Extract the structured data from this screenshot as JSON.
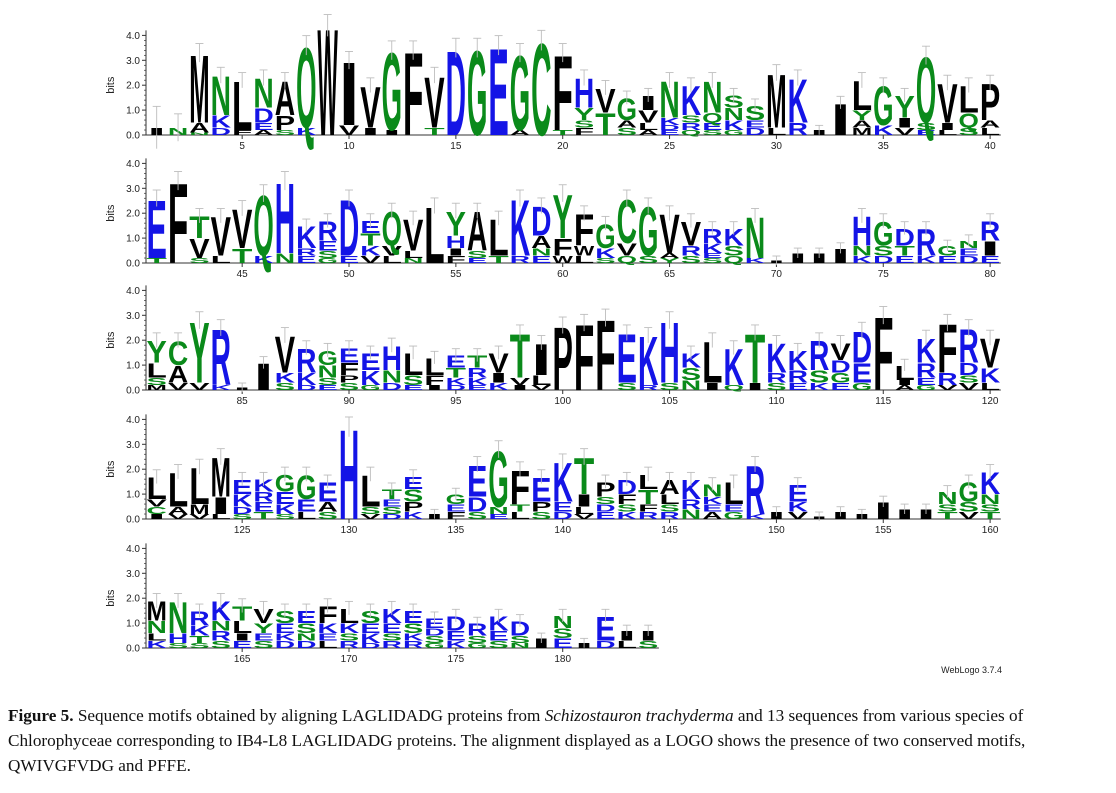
{
  "chart_data": {
    "type": "sequence-logo",
    "ylabel": "bits",
    "yticks": [
      "0.0",
      "1.0",
      "2.0",
      "3.0",
      "4.0"
    ],
    "ylim": [
      0,
      4.2
    ],
    "colors": {
      "polar": "#0a8a1a",
      "basic": "#1414e6",
      "acidic": "#1414e6",
      "hydrophobic": "#000000"
    },
    "credit": "WebLogo 3.7.4",
    "rows": [
      {
        "start": 1,
        "end": 40,
        "xticks": [
          "5",
          "10",
          "15",
          "20",
          "25",
          "30",
          "35",
          "40"
        ],
        "columns": [
          [
            "I:0.3:1.7"
          ],
          [
            "N:0.3:1.1"
          ],
          [
            "M:2.8",
            "A:0.4",
            "N:0.1"
          ],
          [
            "N:1.6",
            "K:0.5",
            "D:0.3"
          ],
          [
            "L:2.0",
            "F:0.2"
          ],
          [
            "N:1.2",
            "D:0.6",
            "E:0.3",
            "A:0.2"
          ],
          [
            "A:1.4",
            "P:0.6",
            "S:0.2"
          ],
          [
            "Q:3.3",
            "K:0.3"
          ],
          [
            "W:4.4"
          ],
          [
            "I:2.6",
            "V:0.4"
          ],
          [
            "V:1.7",
            "I:0.3"
          ],
          [
            "G:3.2",
            "I:0.2"
          ],
          [
            "F:3.4"
          ],
          [
            "V:2.1",
            "T:0.3"
          ],
          [
            "D:3.5"
          ],
          [
            "G:3.5"
          ],
          [
            "E:3.6"
          ],
          [
            "G:3.1",
            "A:0.2"
          ],
          [
            "C:3.8"
          ],
          [
            "F:3.1",
            "T:0.2"
          ],
          [
            "H:1.2",
            "Y:0.5",
            "F:0.3",
            "S:0.3"
          ],
          [
            "T:0.9",
            "V:1.0"
          ],
          [
            "G:0.9",
            "S:0.3",
            "A:0.3"
          ],
          [
            "I:0.6",
            "V:0.5",
            "L:0.3",
            "A:0.2"
          ],
          [
            "N:1.5",
            "K:0.3",
            "E:0.2",
            "D:0.2"
          ],
          [
            "K:1.2",
            "R:0.3",
            "Q:0.2",
            "S:0.3"
          ],
          [
            "N:1.3",
            "Q:0.4",
            "S:0.2",
            "E:0.3"
          ],
          [
            "N:0.5",
            "K:0.4",
            "S:0.5",
            "G:0.2"
          ],
          [
            "S:0.6",
            "D:0.3",
            "E:0.3"
          ],
          [
            "M:2.2",
            "L:0.3"
          ],
          [
            "K:1.8",
            "R:0.5"
          ],
          [
            "I:0.2"
          ],
          [
            "I:1.3"
          ],
          [
            "L:1.2",
            "Y:0.4",
            "M:0.3",
            "A:0.3"
          ],
          [
            "G:1.6",
            "K:0.4"
          ],
          [
            "Y:0.9",
            "V:0.3",
            "I:0.4"
          ],
          [
            "Q:2.7",
            "S:0.3",
            "E:0.2"
          ],
          [
            "V:1.6",
            "I:0.3",
            "L:0.2"
          ],
          [
            "L:1.1",
            "Q:0.6",
            "S:0.3"
          ],
          [
            "P:1.5",
            "L:0.3",
            "A:0.3"
          ]
        ]
      },
      {
        "start": 41,
        "end": 80,
        "xticks": [
          "45",
          "50",
          "55",
          "60",
          "65",
          "70",
          "75",
          "80"
        ],
        "columns": [
          [
            "E:2.4",
            "T:0.2"
          ],
          [
            "F:3.3"
          ],
          [
            "T:0.9",
            "V:0.8",
            "S:0.2"
          ],
          [
            "V:1.6",
            "L:0.3"
          ],
          [
            "V:1.6",
            "T:0.6"
          ],
          [
            "Q:2.5",
            "K:0.3"
          ],
          [
            "H:2.9",
            "N:0.4"
          ],
          [
            "K:0.9",
            "E:0.3",
            "R:0.3"
          ],
          [
            "R:0.8",
            "E:0.4",
            "S:0.3",
            "G:0.2"
          ],
          [
            "D:2.3",
            "E:0.3"
          ],
          [
            "T:0.5",
            "E:0.5",
            "K:0.4",
            "V:0.3"
          ],
          [
            "Q:1.4",
            "V:0.4",
            "L:0.3"
          ],
          [
            "V:1.3",
            "L:0.3",
            "N:0.2"
          ],
          [
            "L:2.3"
          ],
          [
            "Y:1.0",
            "H:0.5",
            "F:0.3",
            "I:0.3"
          ],
          [
            "A:1.6",
            "S:0.3",
            "E:0.2"
          ],
          [
            "L:1.5",
            "T:0.3"
          ],
          [
            "K:2.3",
            "R:0.3"
          ],
          [
            "D:1.2",
            "A:0.5",
            "E:0.3",
            "N:0.3"
          ],
          [
            "Y:1.8",
            "F:0.7",
            "W:0.3"
          ],
          [
            "F:1.3",
            "W:0.4",
            "L:0.3"
          ],
          [
            "G:1.0",
            "K:0.4",
            "S:0.2"
          ],
          [
            "C:1.8",
            "V:0.5",
            "Q:0.3"
          ],
          [
            "G:2.0",
            "S:0.3"
          ],
          [
            "V:1.6",
            "Y:0.2",
            "A:0.2"
          ],
          [
            "V:1.0",
            "R:0.4",
            "S:0.3"
          ],
          [
            "R:0.6",
            "K:0.4",
            "S:0.2",
            "E:0.2"
          ],
          [
            "K:0.7",
            "S:0.4",
            "Q:0.3"
          ],
          [
            "N:1.7",
            "K:0.2"
          ],
          [
            "I:0.1"
          ],
          [
            "I:0.4"
          ],
          [
            "I:0.4"
          ],
          [
            "I:0.6"
          ],
          [
            "H:1.2",
            "N:0.4",
            "K:0.3"
          ],
          [
            "G:1.0",
            "S:0.4",
            "D:0.3"
          ],
          [
            "D:0.7",
            "T:0.4",
            "E:0.3"
          ],
          [
            "R:1.1",
            "K:0.3"
          ],
          [
            "G:0.4",
            "E:0.3"
          ],
          [
            "D:0.3",
            "E:0.3",
            "N:0.3"
          ],
          [
            "R:0.8",
            "I:0.6",
            "E:0.3"
          ]
        ]
      },
      {
        "start": 81,
        "end": 120,
        "xticks": [
          "85",
          "90",
          "95",
          "100",
          "105",
          "110",
          "115",
          "120"
        ],
        "columns": [
          [
            "Y:0.9",
            "L:0.6",
            "M:0.2",
            "S:0.3"
          ],
          [
            "C:1.0",
            "A:0.7",
            "V:0.3"
          ],
          [
            "Y:2.5",
            "V:0.3"
          ],
          [
            "R:2.3",
            "K:0.2"
          ],
          [
            "I:0.1"
          ],
          [
            "I:1.1"
          ],
          [
            "V:1.5",
            "K:0.4",
            "S:0.3"
          ],
          [
            "R:1.0",
            "K:0.5",
            "D:0.2"
          ],
          [
            "G:0.6",
            "N:0.5",
            "S:0.3",
            "E:0.2"
          ],
          [
            "F:0.5",
            "E:0.6",
            "S:0.3",
            "P:0.3"
          ],
          [
            "E:0.7",
            "K:0.6",
            "G:0.2"
          ],
          [
            "H:1.0",
            "N:0.5",
            "D:0.3"
          ],
          [
            "L:0.9",
            "S:0.4",
            "E:0.2"
          ],
          [
            "L:0.7",
            "F:0.4",
            "I:0.2"
          ],
          [
            "T:0.4",
            "E:0.5",
            "K:0.3",
            "D:0.2"
          ],
          [
            "T:0.5",
            "R:0.4",
            "K:0.3",
            "E:0.2"
          ],
          [
            "V:0.8",
            "I:0.4",
            "K:0.3"
          ],
          [
            "T:1.8",
            "V:0.3",
            "I:0.2"
          ],
          [
            "I:1.3",
            "L:0.4",
            "V:0.2"
          ],
          [
            "P:2.6"
          ],
          [
            "F:2.7"
          ],
          [
            "F:2.9"
          ],
          [
            "E:2.0",
            "S:0.3"
          ],
          [
            "K:2.0",
            "R:0.2"
          ],
          [
            "H:2.5",
            "S:0.3"
          ],
          [
            "K:0.6",
            "S:0.5",
            "N:0.4"
          ],
          [
            "L:1.7",
            "I:0.3"
          ],
          [
            "K:1.5",
            "Q:0.2"
          ],
          [
            "T:2.0",
            "I:0.3"
          ],
          [
            "K:1.2",
            "R:0.4",
            "S:0.3"
          ],
          [
            "K:0.8",
            "R:0.5",
            "E:0.3"
          ],
          [
            "R:1.2",
            "S:0.5",
            "K:0.3"
          ],
          [
            "V:0.7",
            "D:0.5",
            "G:0.4",
            "E:0.3"
          ],
          [
            "D:1.3",
            "E:0.8",
            "G:0.3"
          ],
          [
            "F:3.0"
          ],
          [
            "L:0.6",
            "A:0.2",
            "I:0.2"
          ],
          [
            "K:1.0",
            "R:0.6",
            "E:0.3",
            "G:0.2"
          ],
          [
            "F:2.0",
            "R:0.5",
            "V:0.2"
          ],
          [
            "R:1.4",
            "D:0.5",
            "V:0.3",
            "S:0.3"
          ],
          [
            "V:1.2",
            "K:0.6",
            "L:0.3"
          ]
        ]
      },
      {
        "start": 121,
        "end": 160,
        "xticks": [
          "125",
          "130",
          "135",
          "140",
          "145",
          "150",
          "155",
          "160"
        ],
        "columns": [
          [
            "L:0.9",
            "C:0.3",
            "V:0.3",
            "I:0.2"
          ],
          [
            "L:1.4",
            "V:0.2",
            "A:0.3"
          ],
          [
            "L:1.5",
            "M:0.4",
            "V:0.2"
          ],
          [
            "M:1.6",
            "I:0.7",
            "L:0.2"
          ],
          [
            "E:0.6",
            "K:0.5",
            "D:0.3",
            "S:0.2"
          ],
          [
            "E:0.4",
            "K:0.5",
            "R:0.4",
            "T:0.3"
          ],
          [
            "G:0.7",
            "E:0.5",
            "K:0.4",
            "S:0.2"
          ],
          [
            "G:1.0",
            "E:0.5",
            "L:0.3"
          ],
          [
            "E:0.8",
            "A:0.4",
            "S:0.3"
          ],
          [
            "H:3.7"
          ],
          [
            "L:1.3",
            "S:0.3",
            "V:0.2"
          ],
          [
            "T:0.4",
            "S:0.3",
            "E:0.3",
            "D:0.2"
          ],
          [
            "S:0.5",
            "E:0.5",
            "P:0.4",
            "K:0.3"
          ],
          [
            "I:0.2"
          ],
          [
            "F:0.3",
            "G:0.4",
            "E:0.3"
          ],
          [
            "E:1.3",
            "D:0.6",
            "S:0.3"
          ],
          [
            "G:2.3",
            "N:0.3",
            "E:0.2"
          ],
          [
            "F:1.4",
            "L:0.3",
            "T:0.3"
          ],
          [
            "E:1.0",
            "P:0.4",
            "S:0.3"
          ],
          [
            "K:1.6",
            "E:0.4",
            "D:0.3"
          ],
          [
            "T:1.5",
            "I:0.5",
            "L:0.3",
            "V:0.2"
          ],
          [
            "P:0.6",
            "E:0.3",
            "D:0.3",
            "S:0.3"
          ],
          [
            "D:0.6",
            "F:0.4",
            "K:0.3",
            "S:0.3"
          ],
          [
            "T:0.6",
            "L:0.6",
            "R:0.3",
            "F:0.3"
          ],
          [
            "A:0.6",
            "L:0.4",
            "R:0.3",
            "S:0.3"
          ],
          [
            "K:0.8",
            "N:0.4",
            "R:0.4"
          ],
          [
            "N:0.5",
            "A:0.3",
            "E:0.3",
            "K:0.3"
          ],
          [
            "L:0.9",
            "G:0.3",
            "E:0.3"
          ],
          [
            "R:2.0",
            "K:0.2"
          ],
          [
            "I:0.3"
          ],
          [
            "E:0.7",
            "K:0.4",
            "V:0.3"
          ],
          [
            "I:0.1"
          ],
          [
            "I:0.3"
          ],
          [
            "I:0.2"
          ],
          [
            "I:0.7"
          ],
          [
            "I:0.4"
          ],
          [
            "I:0.4"
          ],
          [
            "N:0.5",
            "T:0.3",
            "S:0.3"
          ],
          [
            "G:0.8",
            "S:0.4",
            "V:0.3"
          ],
          [
            "K:0.9",
            "N:0.4",
            "T:0.3",
            "S:0.3"
          ]
        ]
      },
      {
        "start": 161,
        "end": 184,
        "xticks": [
          "165",
          "170",
          "175",
          "180"
        ],
        "columns": [
          [
            "M:0.8",
            "N:0.5",
            "K:0.3",
            "L:0.3"
          ],
          [
            "N:1.3",
            "H:0.4",
            "S:0.2"
          ],
          [
            "R:0.6",
            "K:0.4",
            "T:0.3",
            "S:0.2"
          ],
          [
            "K:0.8",
            "R:0.4",
            "N:0.4",
            "S:0.3"
          ],
          [
            "T:0.6",
            "L:0.5",
            "E:0.3",
            "I:0.3"
          ],
          [
            "V:0.6",
            "Y:0.4",
            "S:0.3",
            "E:0.3"
          ],
          [
            "S:0.5",
            "E:0.4",
            "D:0.3",
            "K:0.3"
          ],
          [
            "E:0.5",
            "S:0.4",
            "D:0.3",
            "N:0.3"
          ],
          [
            "F:0.7",
            "K:0.4",
            "L:0.3",
            "E:0.3"
          ],
          [
            "L:0.6",
            "K:0.4",
            "R:0.3",
            "S:0.3"
          ],
          [
            "S:0.5",
            "K:0.4",
            "E:0.4",
            "D:0.2"
          ],
          [
            "K:0.6",
            "E:0.4",
            "R:0.3",
            "S:0.3"
          ],
          [
            "E:0.5",
            "S:0.4",
            "R:0.3",
            "K:0.3"
          ],
          [
            "E:0.4",
            "S:0.3",
            "D:0.3",
            "G:0.2"
          ],
          [
            "D:0.6",
            "E:0.4",
            "K:0.3"
          ],
          [
            "R:0.5",
            "S:0.3",
            "G:0.2"
          ],
          [
            "K:0.6",
            "E:0.4",
            "S:0.3"
          ],
          [
            "D:0.6",
            "S:0.3",
            "N:0.2"
          ],
          [
            "I:0.4"
          ],
          [
            "N:0.5",
            "E:0.4",
            "S:0.4"
          ],
          [
            "I:0.2"
          ],
          [
            "E:1.0",
            "D:0.3"
          ],
          [
            "I:0.4",
            "L:0.3"
          ],
          [
            "I:0.4",
            "S:0.3"
          ]
        ]
      }
    ]
  },
  "caption": {
    "label": "Figure 5.",
    "text_before": " Sequence motifs obtained by aligning LAGLIDADG proteins from ",
    "species": "Schizostauron trachyderma",
    "text_after": " and 13 sequences from various species of Chlorophyceae corresponding to IB4-L8 LAGLIDADG proteins. The alignment displayed as a LOGO shows the presence of two conserved motifs, QWIVGFVDG and PFFE."
  }
}
